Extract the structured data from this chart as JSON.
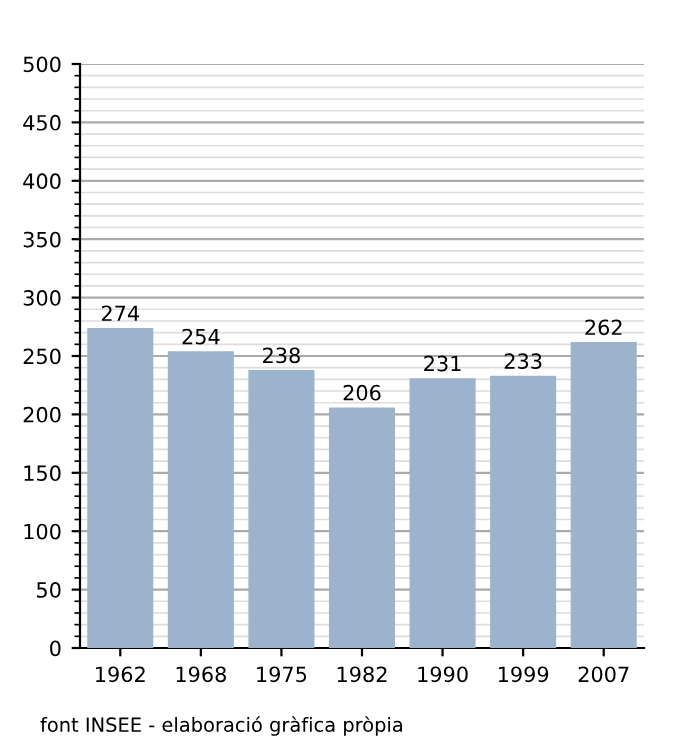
{
  "chart_data": {
    "type": "bar",
    "categories": [
      "1962",
      "1968",
      "1975",
      "1982",
      "1990",
      "1999",
      "2007"
    ],
    "values": [
      274,
      254,
      238,
      206,
      231,
      233,
      262
    ],
    "color": "#9bb3cc",
    "ylim": [
      0,
      500
    ],
    "yticks": [
      0,
      50,
      100,
      150,
      200,
      250,
      300,
      350,
      400,
      450,
      500
    ],
    "grid": "y",
    "data_labels": true,
    "annotations": [
      "font INSEE - elaboració gràfica pròpia"
    ]
  }
}
